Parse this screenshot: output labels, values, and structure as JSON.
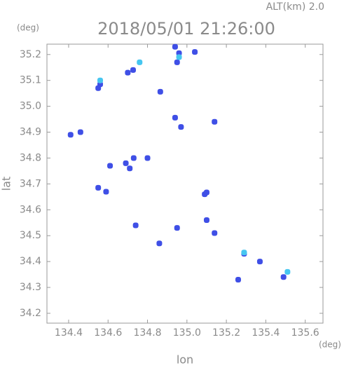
{
  "chart_data": {
    "type": "scatter",
    "title": "2018/05/01 21:26:00",
    "subtitle": "ALT(km) 2.0",
    "x_label": "lon",
    "y_label": "lat",
    "x_unit": "(deg)",
    "y_unit": "(deg)",
    "xlim": [
      134.29,
      135.69
    ],
    "ylim": [
      34.162,
      35.24
    ],
    "xticks": [
      134.4,
      134.6,
      134.8,
      {
        "value": 135,
        "label": "135.0"
      },
      135.2,
      135.4,
      135.6
    ],
    "yticks": [
      34.2,
      34.3,
      34.4,
      34.5,
      34.6,
      34.7,
      34.8,
      34.9,
      {
        "value": 35,
        "label": "35.0"
      },
      35.1,
      35.2
    ],
    "series": [
      {
        "color": "#3f4fe6",
        "x": [
          134.56,
          134.55,
          134.727,
          134.7,
          134.94,
          134.96,
          135.04,
          134.95,
          134.865,
          134.94,
          134.97,
          135.14,
          134.41,
          134.46,
          134.61,
          134.69,
          134.71,
          134.73,
          134.8,
          134.55,
          134.59,
          135.09,
          135.1,
          134.74,
          134.86,
          134.95,
          135.1,
          135.14,
          135.29,
          135.37,
          135.26,
          135.49
        ],
        "y": [
          35.085,
          35.07,
          35.14,
          35.13,
          35.23,
          35.205,
          35.21,
          35.17,
          35.056,
          34.956,
          34.92,
          34.94,
          34.89,
          34.9,
          34.77,
          34.78,
          34.76,
          34.8,
          34.8,
          34.685,
          34.67,
          34.66,
          34.667,
          34.54,
          34.47,
          34.53,
          34.56,
          34.51,
          34.43,
          34.4,
          34.33,
          34.34
        ]
      },
      {
        "color": "#46c6f0",
        "x": [
          134.56,
          134.76,
          134.96,
          135.51,
          135.29
        ],
        "y": [
          35.1,
          35.17,
          35.19,
          34.36,
          34.435
        ]
      }
    ]
  }
}
